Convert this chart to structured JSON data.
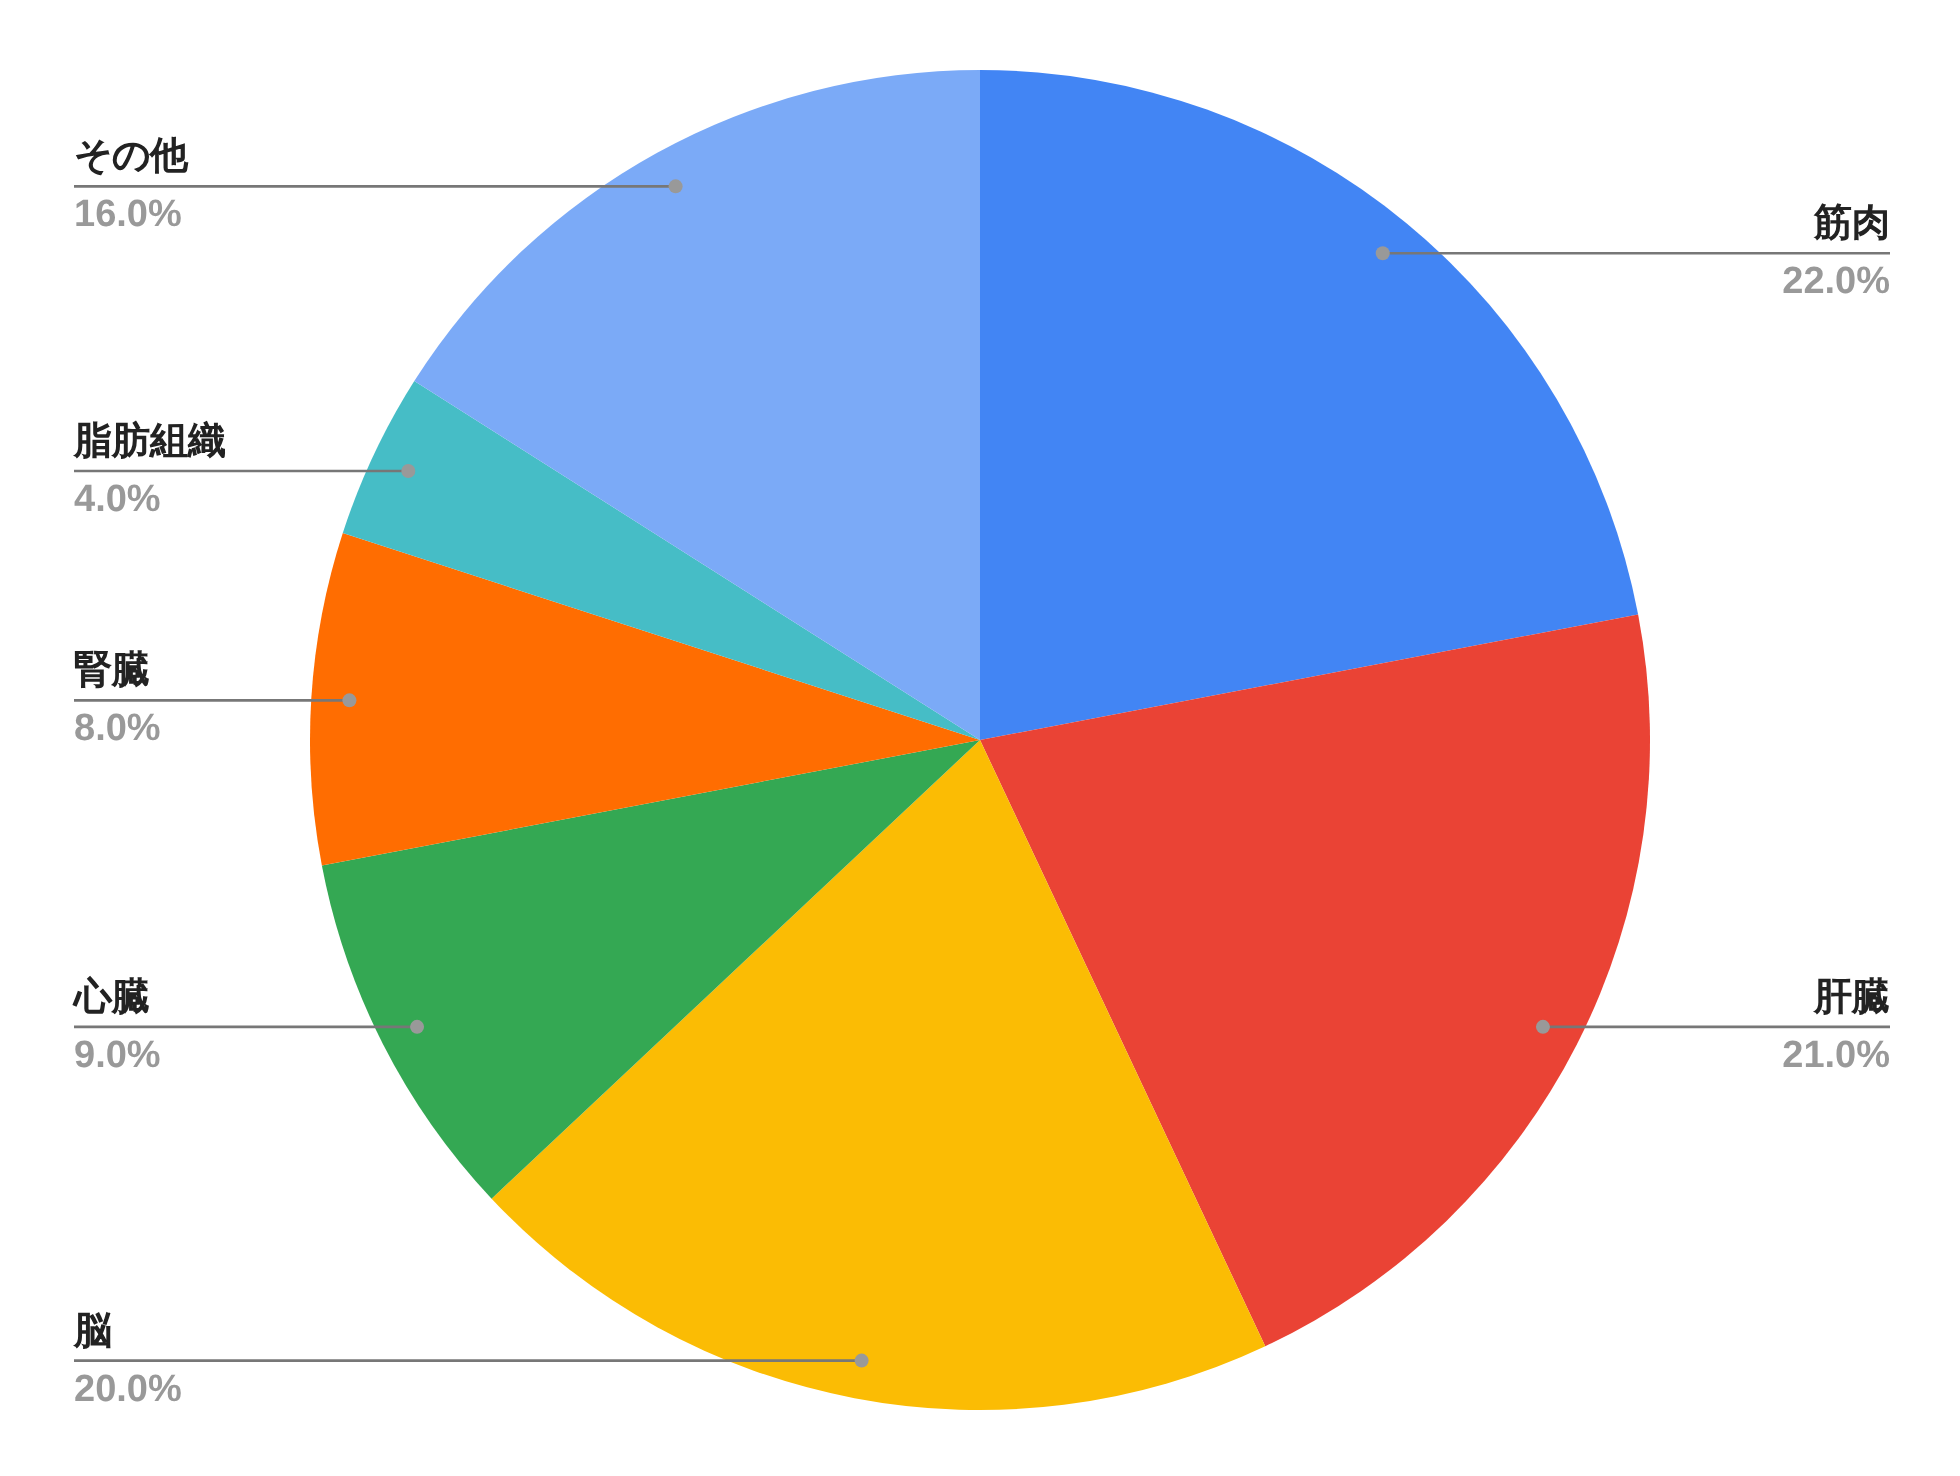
{
  "chart_data": {
    "type": "pie",
    "categories": [
      "筋肉",
      "肝臓",
      "脳",
      "心臓",
      "腎臓",
      "脂肪組織",
      "その他"
    ],
    "values": [
      22,
      21,
      20,
      9,
      8,
      4,
      16
    ],
    "colors": [
      "#4285f4",
      "#ea4335",
      "#fbbc04",
      "#34a853",
      "#ff6d01",
      "#46bdc6",
      "#7baaf7"
    ],
    "value_labels": [
      "22.0%",
      "21.0%",
      "20.0%",
      "9.0%",
      "8.0%",
      "4.0%",
      "16.0%"
    ]
  }
}
